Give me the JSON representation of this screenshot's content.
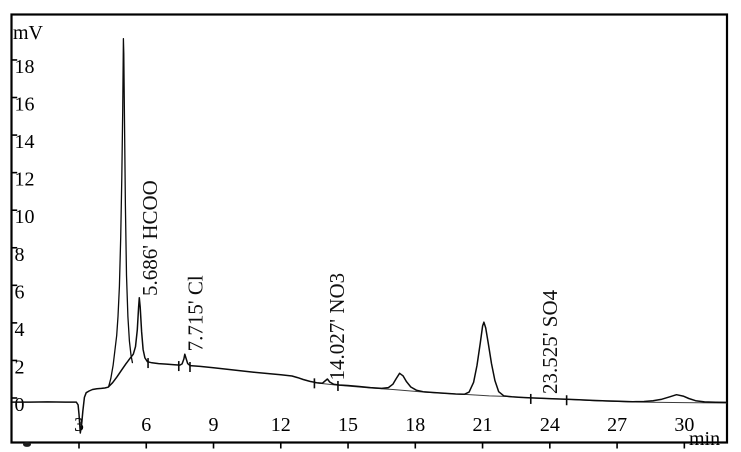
{
  "chart_data": {
    "type": "line",
    "xlabel": "min",
    "ylabel": "mV",
    "xlim": [
      0,
      32
    ],
    "ylim": [
      -2.1,
      20.7
    ],
    "x_ticks": [
      3,
      6,
      9,
      12,
      15,
      18,
      21,
      24,
      27,
      30
    ],
    "y_ticks": [
      0,
      2,
      4,
      6,
      8,
      10,
      12,
      14,
      16,
      18
    ],
    "grid": false,
    "legend": false,
    "peaks": [
      {
        "rt_label": "5.686'",
        "ion": "HCOO",
        "rt_min": 5.686,
        "apex_mv": 5.6,
        "label_base_mv": 5.7
      },
      {
        "rt_label": "7.715'",
        "ion": "Cl",
        "rt_min": 7.715,
        "apex_mv": 2.6,
        "label_base_mv": 2.75
      },
      {
        "rt_label": "14.027'",
        "ion": "NO3",
        "rt_min": 14.027,
        "apex_mv": 1.28,
        "label_base_mv": 1.2
      },
      {
        "rt_label": "23.525'",
        "ion": "SO4",
        "rt_min": 23.525,
        "apex_mv": 0.3,
        "label_base_mv": 0.48
      }
    ],
    "peak_markers": [
      [
        6.08,
        2.18
      ],
      [
        7.45,
        2.02
      ],
      [
        7.95,
        1.97
      ],
      [
        13.5,
        1.1
      ],
      [
        14.55,
        0.96
      ],
      [
        23.15,
        0.27
      ],
      [
        24.75,
        0.2
      ]
    ],
    "series": [
      {
        "name": "signal",
        "points": [
          [
            0.05,
            0.05
          ],
          [
            0.8,
            0.05
          ],
          [
            1.6,
            0.06
          ],
          [
            2.4,
            0.05
          ],
          [
            2.88,
            0.05
          ],
          [
            2.96,
            -0.1
          ],
          [
            3.0,
            -0.6
          ],
          [
            3.06,
            -1.6
          ],
          [
            3.12,
            -1.1
          ],
          [
            3.17,
            -0.45
          ],
          [
            3.24,
            0.3
          ],
          [
            3.32,
            0.55
          ],
          [
            3.45,
            0.64
          ],
          [
            3.6,
            0.72
          ],
          [
            3.8,
            0.76
          ],
          [
            4.0,
            0.78
          ],
          [
            4.15,
            0.8
          ],
          [
            4.3,
            0.84
          ],
          [
            4.5,
            1.08
          ],
          [
            4.7,
            1.4
          ],
          [
            4.9,
            1.75
          ],
          [
            5.1,
            2.1
          ],
          [
            5.3,
            2.42
          ],
          [
            5.42,
            2.6
          ],
          [
            5.52,
            3.0
          ],
          [
            5.6,
            3.9
          ],
          [
            5.66,
            5.1
          ],
          [
            5.69,
            5.6
          ],
          [
            5.73,
            5.1
          ],
          [
            5.79,
            3.8
          ],
          [
            5.86,
            2.85
          ],
          [
            5.94,
            2.4
          ],
          [
            6.05,
            2.2
          ],
          [
            6.25,
            2.14
          ],
          [
            6.55,
            2.1
          ],
          [
            6.9,
            2.07
          ],
          [
            7.25,
            2.04
          ],
          [
            7.5,
            2.02
          ],
          [
            7.6,
            2.08
          ],
          [
            7.68,
            2.35
          ],
          [
            7.72,
            2.6
          ],
          [
            7.77,
            2.4
          ],
          [
            7.85,
            2.1
          ],
          [
            7.95,
            1.99
          ],
          [
            8.4,
            1.95
          ],
          [
            9.0,
            1.88
          ],
          [
            9.6,
            1.8
          ],
          [
            10.2,
            1.72
          ],
          [
            10.8,
            1.64
          ],
          [
            11.4,
            1.57
          ],
          [
            12.0,
            1.5
          ],
          [
            12.5,
            1.44
          ],
          [
            12.75,
            1.35
          ],
          [
            13.0,
            1.25
          ],
          [
            13.3,
            1.15
          ],
          [
            13.6,
            1.08
          ],
          [
            13.85,
            1.05
          ],
          [
            14.0,
            1.2
          ],
          [
            14.08,
            1.28
          ],
          [
            14.18,
            1.12
          ],
          [
            14.35,
            1.0
          ],
          [
            14.6,
            0.96
          ],
          [
            15.0,
            0.93
          ],
          [
            15.5,
            0.88
          ],
          [
            16.0,
            0.82
          ],
          [
            16.5,
            0.78
          ],
          [
            16.8,
            0.82
          ],
          [
            17.0,
            1.0
          ],
          [
            17.15,
            1.3
          ],
          [
            17.3,
            1.58
          ],
          [
            17.45,
            1.45
          ],
          [
            17.6,
            1.15
          ],
          [
            17.8,
            0.85
          ],
          [
            18.05,
            0.68
          ],
          [
            18.35,
            0.6
          ],
          [
            18.8,
            0.56
          ],
          [
            19.3,
            0.52
          ],
          [
            19.8,
            0.48
          ],
          [
            20.2,
            0.47
          ],
          [
            20.4,
            0.58
          ],
          [
            20.6,
            1.1
          ],
          [
            20.75,
            2.0
          ],
          [
            20.9,
            3.2
          ],
          [
            21.0,
            4.1
          ],
          [
            21.06,
            4.3
          ],
          [
            21.14,
            4.0
          ],
          [
            21.25,
            3.2
          ],
          [
            21.4,
            2.1
          ],
          [
            21.55,
            1.2
          ],
          [
            21.72,
            0.6
          ],
          [
            21.95,
            0.38
          ],
          [
            22.3,
            0.33
          ],
          [
            22.7,
            0.3
          ],
          [
            23.15,
            0.27
          ],
          [
            23.6,
            0.25
          ],
          [
            24.1,
            0.23
          ],
          [
            24.75,
            0.2
          ],
          [
            25.3,
            0.17
          ],
          [
            25.9,
            0.14
          ],
          [
            26.5,
            0.11
          ],
          [
            27.1,
            0.09
          ],
          [
            27.7,
            0.07
          ],
          [
            28.2,
            0.08
          ],
          [
            28.6,
            0.12
          ],
          [
            29.0,
            0.2
          ],
          [
            29.35,
            0.33
          ],
          [
            29.65,
            0.44
          ],
          [
            29.95,
            0.37
          ],
          [
            30.2,
            0.24
          ],
          [
            30.5,
            0.12
          ],
          [
            30.9,
            0.06
          ],
          [
            31.4,
            0.04
          ],
          [
            31.9,
            0.03
          ]
        ]
      },
      {
        "name": "injection-spike",
        "points": [
          [
            4.32,
            0.86
          ],
          [
            4.42,
            1.3
          ],
          [
            4.52,
            2.0
          ],
          [
            4.6,
            2.8
          ],
          [
            4.68,
            3.6
          ],
          [
            4.74,
            4.6
          ],
          [
            4.8,
            6.2
          ],
          [
            4.86,
            8.8
          ],
          [
            4.91,
            12.0
          ],
          [
            4.95,
            15.5
          ],
          [
            4.98,
            19.4
          ],
          [
            5.0,
            18.6
          ],
          [
            5.03,
            15.0
          ],
          [
            5.07,
            10.5
          ],
          [
            5.12,
            6.8
          ],
          [
            5.18,
            4.6
          ],
          [
            5.25,
            3.3
          ],
          [
            5.32,
            2.55
          ],
          [
            5.38,
            2.15
          ]
        ]
      },
      {
        "name": "integration-baseline",
        "points": [
          [
            13.5,
            1.08
          ],
          [
            14.55,
            0.95
          ],
          [
            16.0,
            0.8
          ],
          [
            17.0,
            0.72
          ],
          [
            18.4,
            0.58
          ],
          [
            19.8,
            0.48
          ],
          [
            20.3,
            0.45
          ],
          [
            21.3,
            0.38
          ],
          [
            22.0,
            0.35
          ],
          [
            22.4,
            0.32
          ],
          [
            23.15,
            0.27
          ],
          [
            24.75,
            0.2
          ],
          [
            26.0,
            0.12
          ],
          [
            27.5,
            0.06
          ],
          [
            28.5,
            0.04
          ],
          [
            30.0,
            0.02
          ],
          [
            31.9,
            0.0
          ]
        ]
      }
    ]
  }
}
